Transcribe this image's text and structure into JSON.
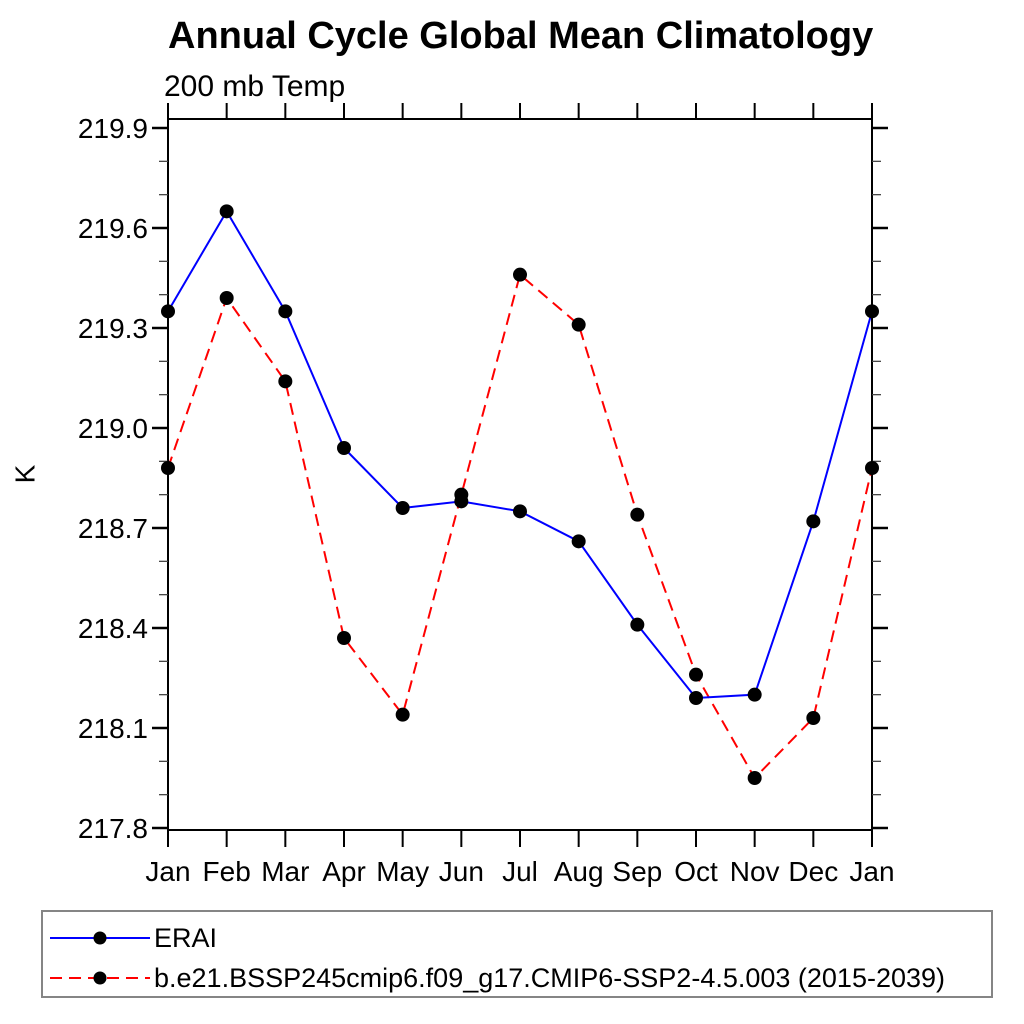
{
  "chart_data": {
    "type": "line",
    "title": "Annual Cycle Global Mean Climatology",
    "subtitle": "200 mb Temp",
    "ylabel": "K",
    "xlabel": "",
    "categories": [
      "Jan",
      "Feb",
      "Mar",
      "Apr",
      "May",
      "Jun",
      "Jul",
      "Aug",
      "Sep",
      "Oct",
      "Nov",
      "Dec",
      "Jan"
    ],
    "ylim": [
      217.8,
      219.9
    ],
    "ytick_major_step": 0.3,
    "ytick_minor_step": 0.1,
    "ytick_label_decimals": 1,
    "grid": false,
    "frame": "closed-box-with-outward-ticks",
    "legend_position": "bottom-left-box",
    "marker": "filled-circle",
    "marker_color": "#000000",
    "axis_color": "#000000",
    "series": [
      {
        "name": "ERAI",
        "color": "#0000ff",
        "line_style": "solid",
        "values": [
          219.35,
          219.65,
          219.35,
          218.94,
          218.76,
          218.78,
          218.75,
          218.66,
          218.41,
          218.19,
          218.2,
          218.72,
          219.35
        ]
      },
      {
        "name": "b.e21.BSSP245cmip6.f09_g17.CMIP6-SSP2-4.5.003 (2015-2039)",
        "color": "#ff0000",
        "line_style": "dashed",
        "values": [
          218.88,
          219.39,
          219.14,
          218.37,
          218.14,
          218.8,
          219.46,
          219.31,
          218.74,
          218.26,
          217.95,
          218.13,
          218.88
        ]
      }
    ]
  }
}
